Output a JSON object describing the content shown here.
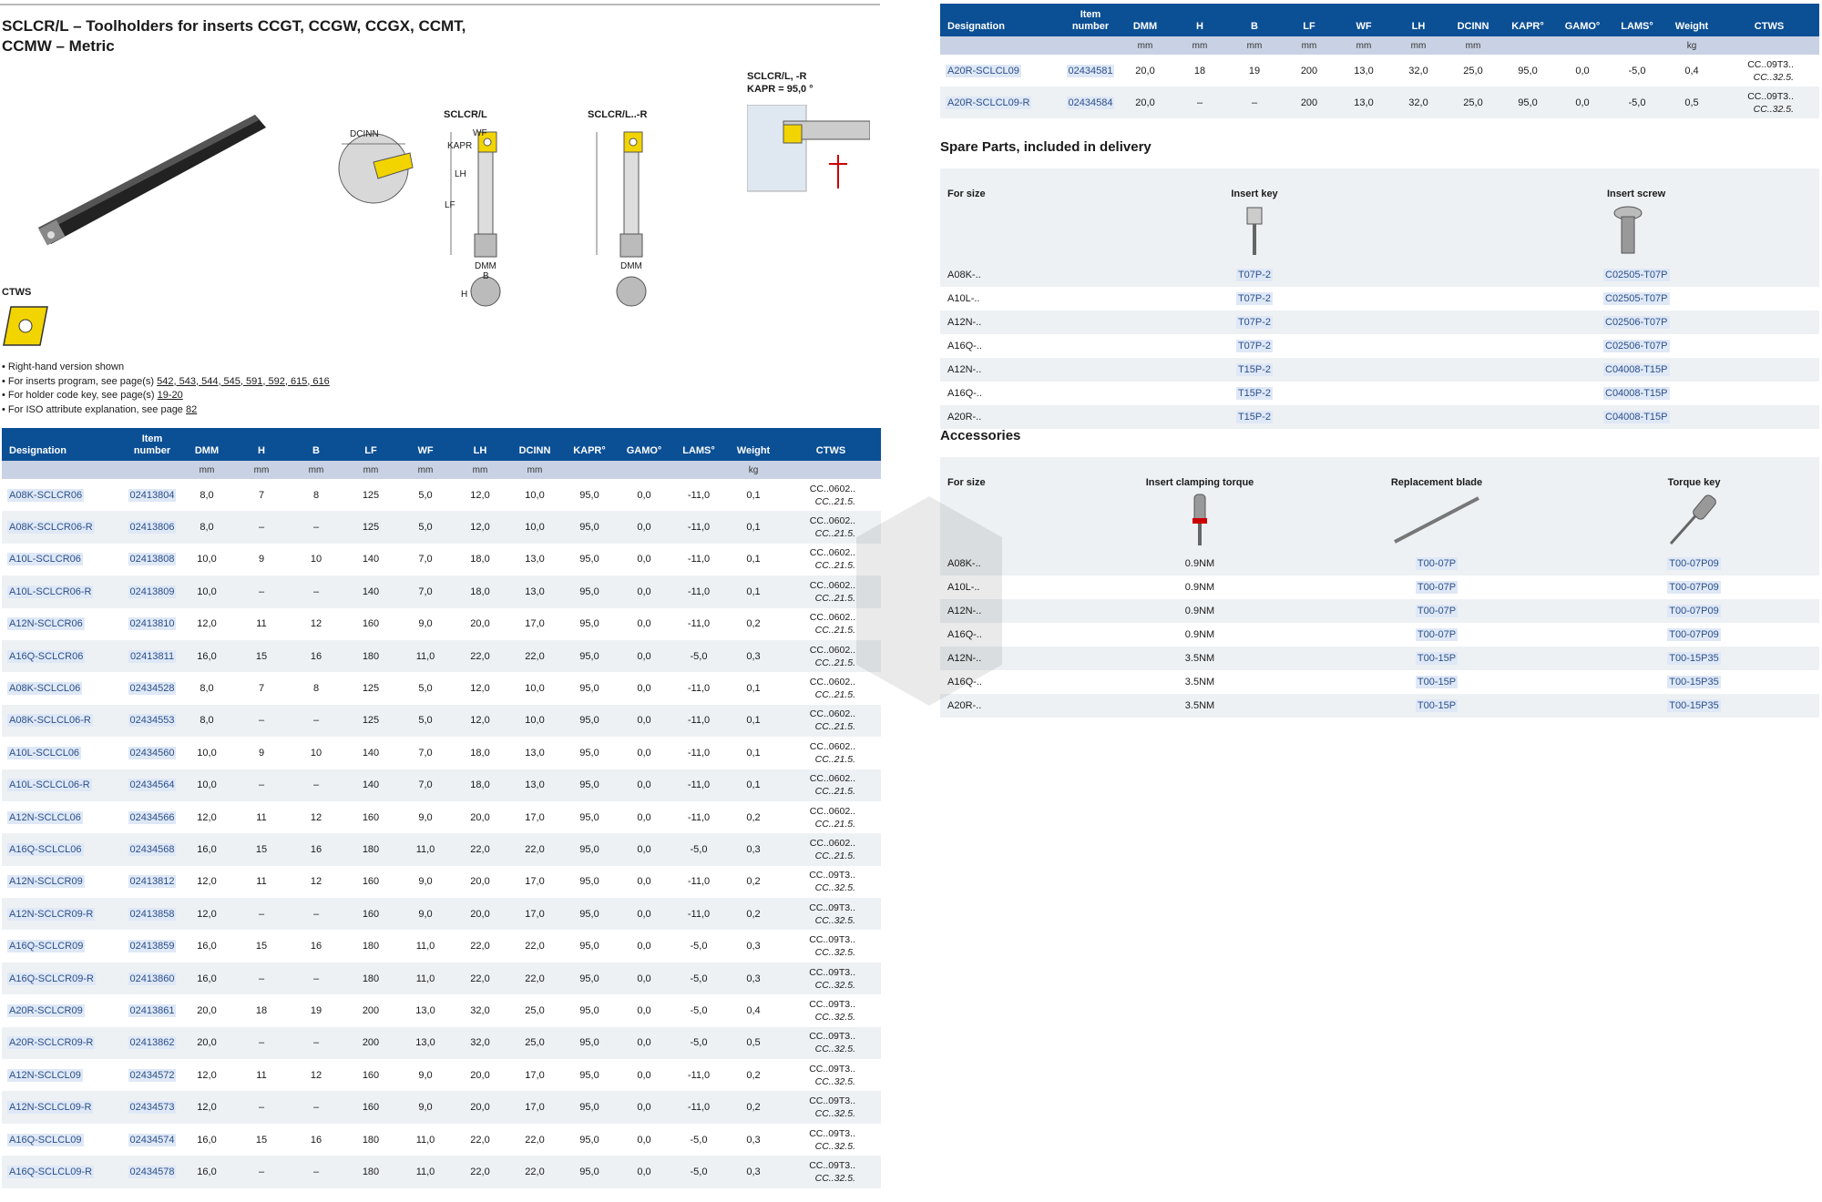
{
  "title": "SCLCR/L – Toolholders for inserts CCGT, CCGW, CCGX, CCMT, CCMW – Metric",
  "insert_label": "CTWS",
  "colors": {
    "header_bg": "#0b4f95",
    "unit_row_bg": "#c9d2e4",
    "insert_yellow": "#f2d400",
    "link_bg": "#dfe8f6"
  },
  "drawing_labels": {
    "dcinn": "DCINN",
    "sclcr": "SCLCR/L",
    "sclcr_r": "SCLCR/L..-R",
    "kapr": "KAPR",
    "wf": "WF",
    "lh": "LH",
    "lf": "LF",
    "dmm": "DMM",
    "b": "B",
    "h": "H",
    "variant_title": "SCLCR/L, -R",
    "variant_kapr": "KAPR = 95,0 °"
  },
  "notes": {
    "n1": "Right-hand version shown",
    "n2_pre": "For inserts program, see page(s) ",
    "n2_pages": "542, 543, 544, 545, 591, 592, 615, 616",
    "n3_pre": "For holder code key, see page(s) ",
    "n3_pages": "19-20",
    "n4_pre": "For ISO attribute explanation, see page ",
    "n4_pages": "82"
  },
  "headers": [
    "Designation",
    "Item number",
    "DMM",
    "H",
    "B",
    "LF",
    "WF",
    "LH",
    "DCINN",
    "KAPR°",
    "GAMO°",
    "LAMS°",
    "Weight",
    "CTWS"
  ],
  "units": [
    "",
    "",
    "mm",
    "mm",
    "mm",
    "mm",
    "mm",
    "mm",
    "mm",
    "",
    "",
    "",
    "kg",
    ""
  ],
  "main_rows": [
    [
      "A08K-SCLCR06",
      "02413804",
      "8,0",
      "7",
      "8",
      "125",
      "5,0",
      "12,0",
      "10,0",
      "95,0",
      "0,0",
      "-11,0",
      "0,1",
      "CC..0602..",
      "CC..21.5."
    ],
    [
      "A08K-SCLCR06-R",
      "02413806",
      "8,0",
      "–",
      "–",
      "125",
      "5,0",
      "12,0",
      "10,0",
      "95,0",
      "0,0",
      "-11,0",
      "0,1",
      "CC..0602..",
      "CC..21.5."
    ],
    [
      "A10L-SCLCR06",
      "02413808",
      "10,0",
      "9",
      "10",
      "140",
      "7,0",
      "18,0",
      "13,0",
      "95,0",
      "0,0",
      "-11,0",
      "0,1",
      "CC..0602..",
      "CC..21.5."
    ],
    [
      "A10L-SCLCR06-R",
      "02413809",
      "10,0",
      "–",
      "–",
      "140",
      "7,0",
      "18,0",
      "13,0",
      "95,0",
      "0,0",
      "-11,0",
      "0,1",
      "CC..0602..",
      "CC..21.5."
    ],
    [
      "A12N-SCLCR06",
      "02413810",
      "12,0",
      "11",
      "12",
      "160",
      "9,0",
      "20,0",
      "17,0",
      "95,0",
      "0,0",
      "-11,0",
      "0,2",
      "CC..0602..",
      "CC..21.5."
    ],
    [
      "A16Q-SCLCR06",
      "02413811",
      "16,0",
      "15",
      "16",
      "180",
      "11,0",
      "22,0",
      "22,0",
      "95,0",
      "0,0",
      "-5,0",
      "0,3",
      "CC..0602..",
      "CC..21.5."
    ],
    [
      "A08K-SCLCL06",
      "02434528",
      "8,0",
      "7",
      "8",
      "125",
      "5,0",
      "12,0",
      "10,0",
      "95,0",
      "0,0",
      "-11,0",
      "0,1",
      "CC..0602..",
      "CC..21.5."
    ],
    [
      "A08K-SCLCL06-R",
      "02434553",
      "8,0",
      "–",
      "–",
      "125",
      "5,0",
      "12,0",
      "10,0",
      "95,0",
      "0,0",
      "-11,0",
      "0,1",
      "CC..0602..",
      "CC..21.5."
    ],
    [
      "A10L-SCLCL06",
      "02434560",
      "10,0",
      "9",
      "10",
      "140",
      "7,0",
      "18,0",
      "13,0",
      "95,0",
      "0,0",
      "-11,0",
      "0,1",
      "CC..0602..",
      "CC..21.5."
    ],
    [
      "A10L-SCLCL06-R",
      "02434564",
      "10,0",
      "–",
      "–",
      "140",
      "7,0",
      "18,0",
      "13,0",
      "95,0",
      "0,0",
      "-11,0",
      "0,1",
      "CC..0602..",
      "CC..21.5."
    ],
    [
      "A12N-SCLCL06",
      "02434566",
      "12,0",
      "11",
      "12",
      "160",
      "9,0",
      "20,0",
      "17,0",
      "95,0",
      "0,0",
      "-11,0",
      "0,2",
      "CC..0602..",
      "CC..21.5."
    ],
    [
      "A16Q-SCLCL06",
      "02434568",
      "16,0",
      "15",
      "16",
      "180",
      "11,0",
      "22,0",
      "22,0",
      "95,0",
      "0,0",
      "-5,0",
      "0,3",
      "CC..0602..",
      "CC..21.5."
    ],
    [
      "A12N-SCLCR09",
      "02413812",
      "12,0",
      "11",
      "12",
      "160",
      "9,0",
      "20,0",
      "17,0",
      "95,0",
      "0,0",
      "-11,0",
      "0,2",
      "CC..09T3..",
      "CC..32.5."
    ],
    [
      "A12N-SCLCR09-R",
      "02413858",
      "12,0",
      "–",
      "–",
      "160",
      "9,0",
      "20,0",
      "17,0",
      "95,0",
      "0,0",
      "-11,0",
      "0,2",
      "CC..09T3..",
      "CC..32.5."
    ],
    [
      "A16Q-SCLCR09",
      "02413859",
      "16,0",
      "15",
      "16",
      "180",
      "11,0",
      "22,0",
      "22,0",
      "95,0",
      "0,0",
      "-5,0",
      "0,3",
      "CC..09T3..",
      "CC..32.5."
    ],
    [
      "A16Q-SCLCR09-R",
      "02413860",
      "16,0",
      "–",
      "–",
      "180",
      "11,0",
      "22,0",
      "22,0",
      "95,0",
      "0,0",
      "-5,0",
      "0,3",
      "CC..09T3..",
      "CC..32.5."
    ],
    [
      "A20R-SCLCR09",
      "02413861",
      "20,0",
      "18",
      "19",
      "200",
      "13,0",
      "32,0",
      "25,0",
      "95,0",
      "0,0",
      "-5,0",
      "0,4",
      "CC..09T3..",
      "CC..32.5."
    ],
    [
      "A20R-SCLCR09-R",
      "02413862",
      "20,0",
      "–",
      "–",
      "200",
      "13,0",
      "32,0",
      "25,0",
      "95,0",
      "0,0",
      "-5,0",
      "0,5",
      "CC..09T3..",
      "CC..32.5."
    ],
    [
      "A12N-SCLCL09",
      "02434572",
      "12,0",
      "11",
      "12",
      "160",
      "9,0",
      "20,0",
      "17,0",
      "95,0",
      "0,0",
      "-11,0",
      "0,2",
      "CC..09T3..",
      "CC..32.5."
    ],
    [
      "A12N-SCLCL09-R",
      "02434573",
      "12,0",
      "–",
      "–",
      "160",
      "9,0",
      "20,0",
      "17,0",
      "95,0",
      "0,0",
      "-11,0",
      "0,2",
      "CC..09T3..",
      "CC..32.5."
    ],
    [
      "A16Q-SCLCL09",
      "02434574",
      "16,0",
      "15",
      "16",
      "180",
      "11,0",
      "22,0",
      "22,0",
      "95,0",
      "0,0",
      "-5,0",
      "0,3",
      "CC..09T3..",
      "CC..32.5."
    ],
    [
      "A16Q-SCLCL09-R",
      "02434578",
      "16,0",
      "–",
      "–",
      "180",
      "11,0",
      "22,0",
      "22,0",
      "95,0",
      "0,0",
      "-5,0",
      "0,3",
      "CC..09T3..",
      "CC..32.5."
    ]
  ],
  "right_rows": [
    [
      "A20R-SCLCL09",
      "02434581",
      "20,0",
      "18",
      "19",
      "200",
      "13,0",
      "32,0",
      "25,0",
      "95,0",
      "0,0",
      "-5,0",
      "0,4",
      "CC..09T3..",
      "CC..32.5."
    ],
    [
      "A20R-SCLCL09-R",
      "02434584",
      "20,0",
      "–",
      "–",
      "200",
      "13,0",
      "32,0",
      "25,0",
      "95,0",
      "0,0",
      "-5,0",
      "0,5",
      "CC..09T3..",
      "CC..32.5."
    ]
  ],
  "spare_parts": {
    "title": "Spare Parts, included in delivery",
    "headers": [
      "For size",
      "Insert key",
      "Insert screw"
    ],
    "rows": [
      [
        "A08K-..",
        "T07P-2",
        "C02505-T07P"
      ],
      [
        "A10L-..",
        "T07P-2",
        "C02505-T07P"
      ],
      [
        "A12N-..",
        "T07P-2",
        "C02506-T07P"
      ],
      [
        "A16Q-..",
        "T07P-2",
        "C02506-T07P"
      ],
      [
        "A12N-..",
        "T15P-2",
        "C04008-T15P"
      ],
      [
        "A16Q-..",
        "T15P-2",
        "C04008-T15P"
      ],
      [
        "A20R-..",
        "T15P-2",
        "C04008-T15P"
      ]
    ]
  },
  "accessories": {
    "title": "Accessories",
    "headers": [
      "For size",
      "Insert clamping torque",
      "Replacement blade",
      "Torque key"
    ],
    "rows": [
      [
        "A08K-..",
        "0.9NM",
        "T00-07P",
        "T00-07P09"
      ],
      [
        "A10L-..",
        "0.9NM",
        "T00-07P",
        "T00-07P09"
      ],
      [
        "A12N-..",
        "0.9NM",
        "T00-07P",
        "T00-07P09"
      ],
      [
        "A16Q-..",
        "0.9NM",
        "T00-07P",
        "T00-07P09"
      ],
      [
        "A12N-..",
        "3.5NM",
        "T00-15P",
        "T00-15P35"
      ],
      [
        "A16Q-..",
        "3.5NM",
        "T00-15P",
        "T00-15P35"
      ],
      [
        "A20R-..",
        "3.5NM",
        "T00-15P",
        "T00-15P35"
      ]
    ]
  }
}
